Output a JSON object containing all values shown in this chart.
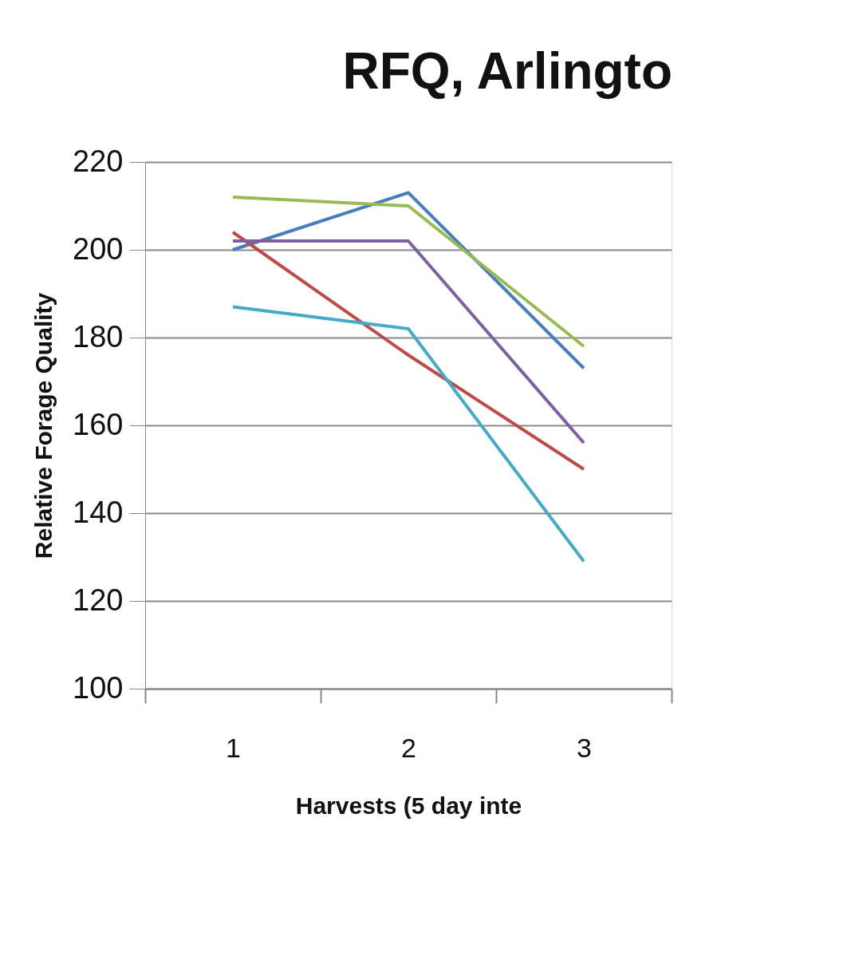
{
  "chart_data": {
    "type": "line",
    "title": "RFQ, Arlingto",
    "xlabel": "Harvests (5 day inte",
    "ylabel": "Relative Forage Quality",
    "categories": [
      "1",
      "2",
      "3"
    ],
    "series": [
      {
        "color": "#4a7ebb",
        "values": [
          200,
          213,
          173
        ]
      },
      {
        "color": "#be4b48",
        "values": [
          204,
          176,
          150
        ]
      },
      {
        "color": "#98b954",
        "values": [
          212,
          210,
          178
        ]
      },
      {
        "color": "#7d60a0",
        "values": [
          202,
          202,
          156
        ]
      },
      {
        "color": "#46aac5",
        "values": [
          187,
          182,
          129
        ]
      }
    ],
    "ylim": [
      100,
      220
    ],
    "yticks": [
      100,
      120,
      140,
      160,
      180,
      200,
      220
    ],
    "grid": "y",
    "marker": "none",
    "line_style": "solid"
  }
}
